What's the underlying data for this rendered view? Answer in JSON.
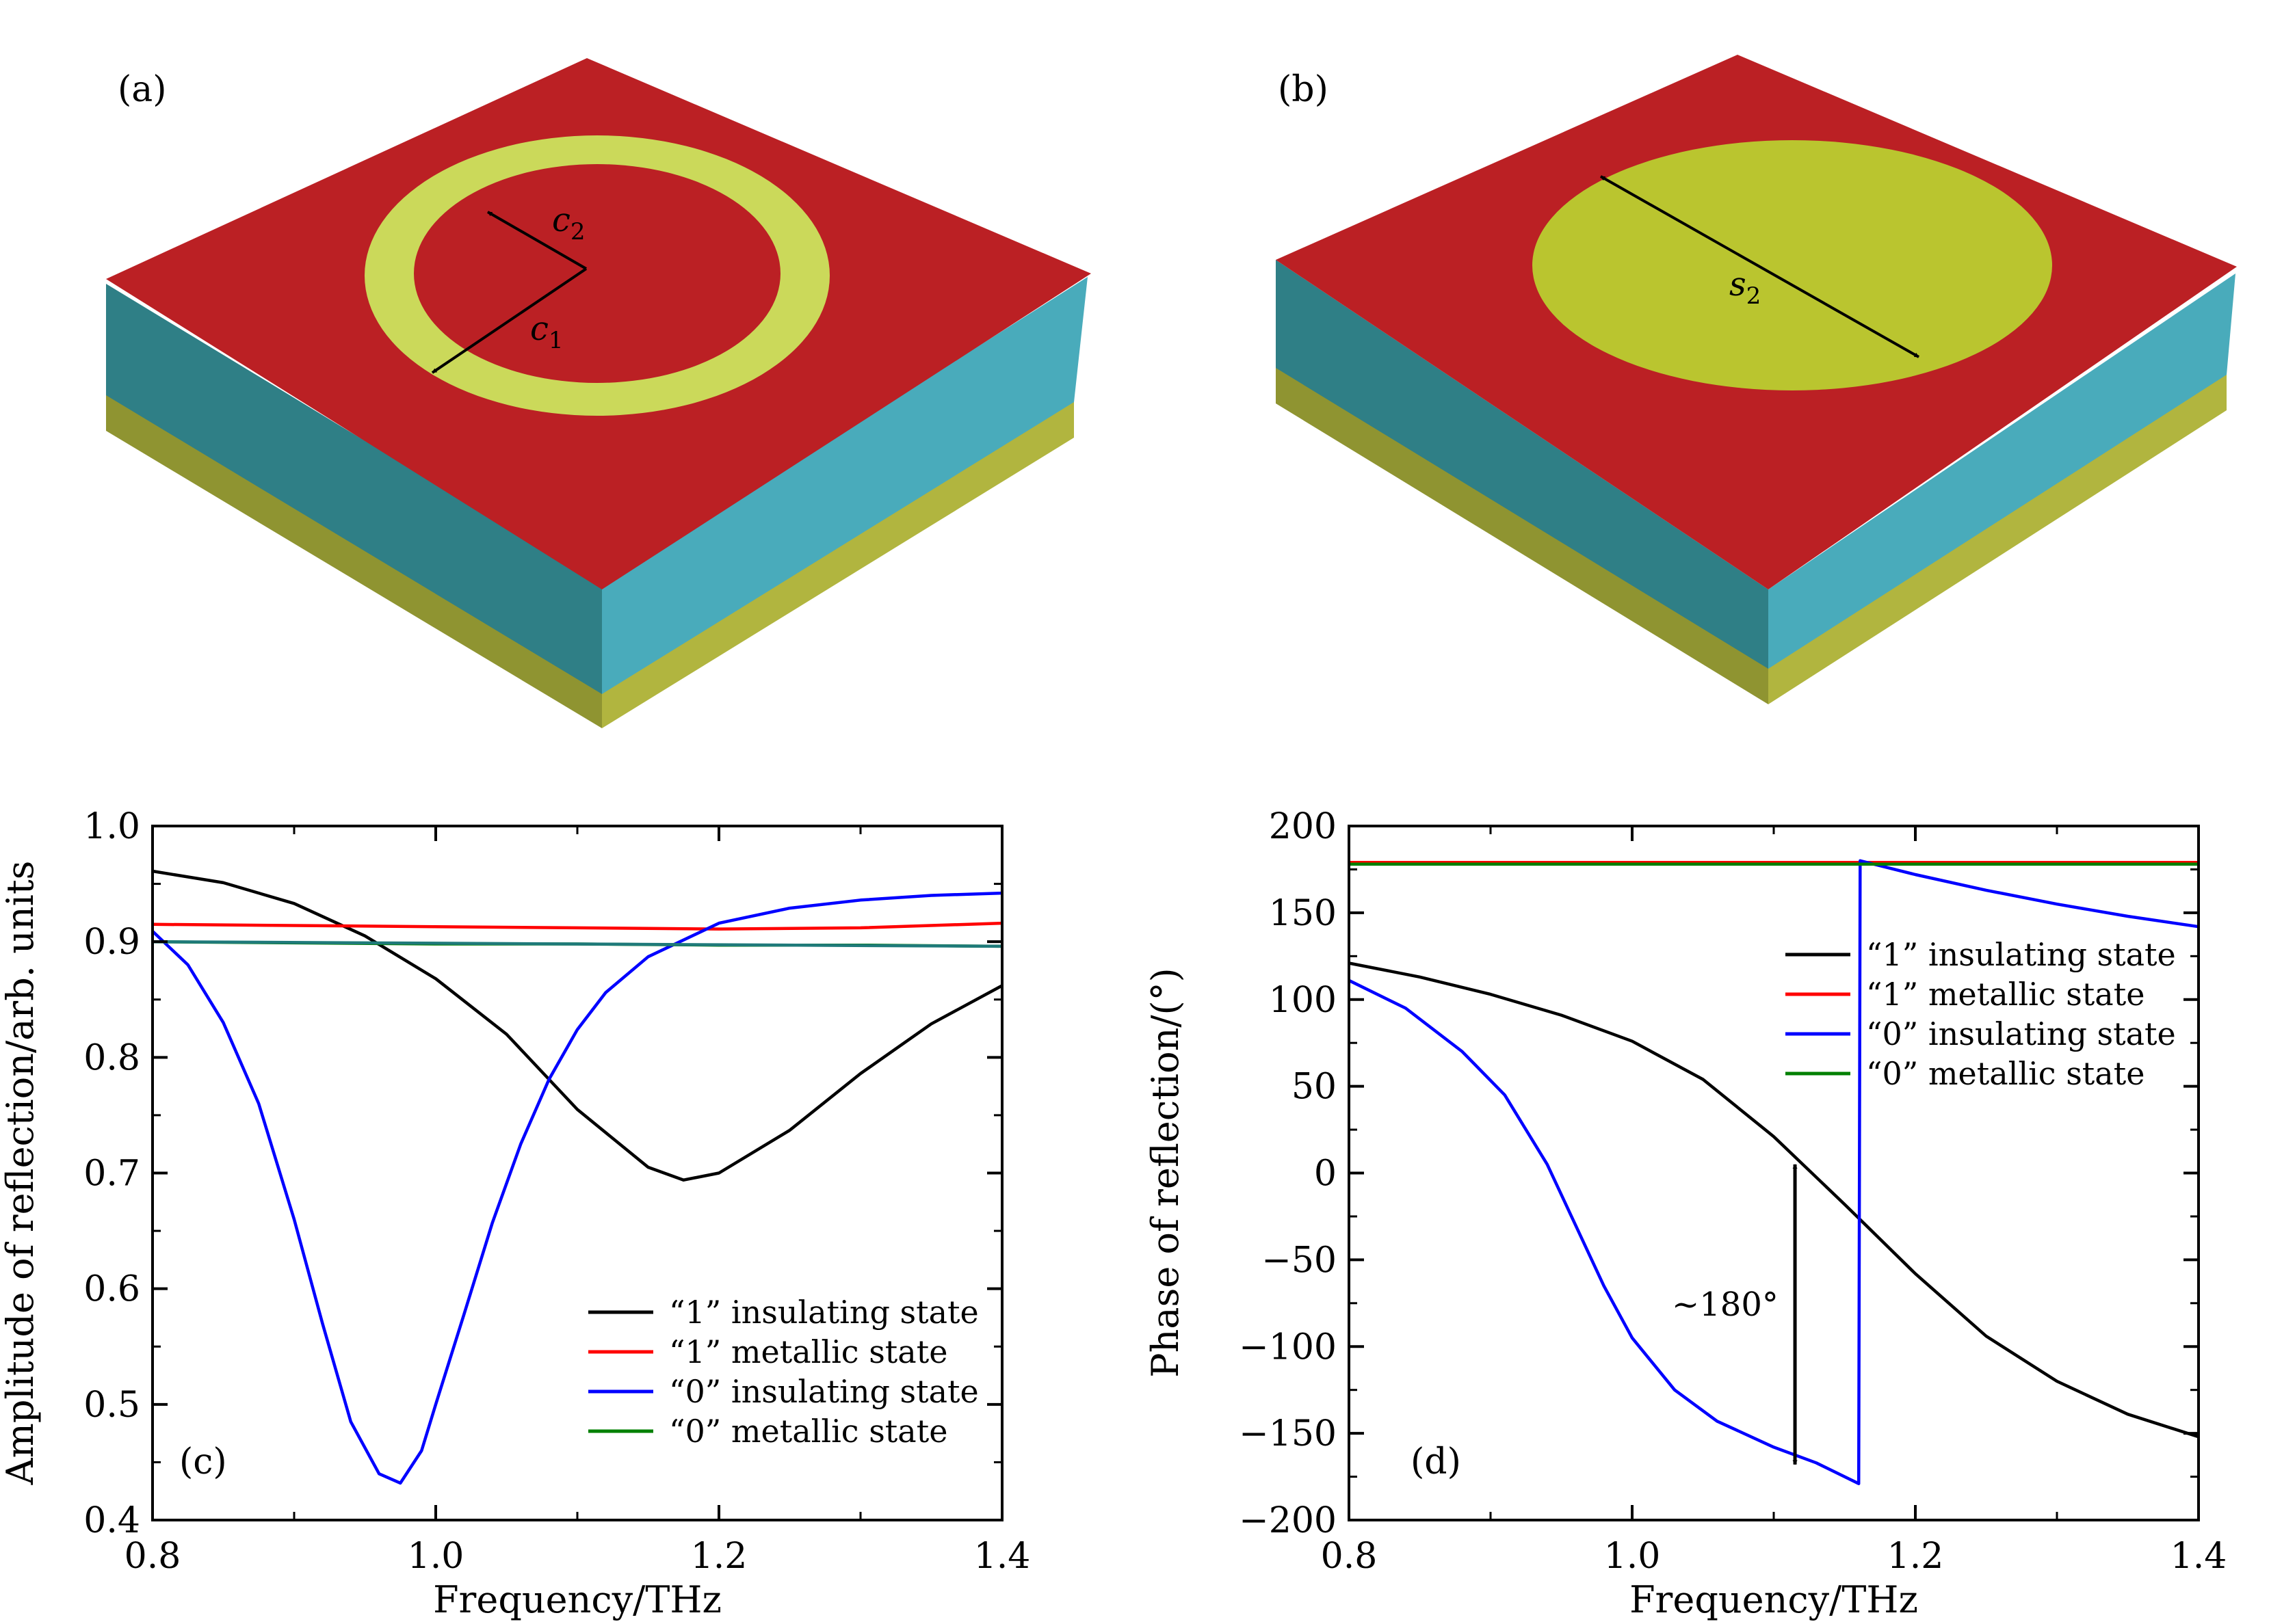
{
  "panels": {
    "a": {
      "label": "(a)",
      "dim1": "c",
      "dim1_sub": "1",
      "dim2": "c",
      "dim2_sub": "2",
      "colors": {
        "top": "#bb2024",
        "ring": "#cbd95a",
        "substrate_dark": "#2f7f86",
        "substrate_light": "#49abbb",
        "ground": "#a6a838"
      }
    },
    "b": {
      "label": "(b)",
      "dim": "s",
      "dim_sub": "2",
      "colors": {
        "top": "#bb2024",
        "disk": "#bac52f",
        "substrate_dark": "#2f7f86",
        "substrate_light": "#49abbb",
        "ground": "#a6a838"
      }
    }
  },
  "chart_data": [
    {
      "id": "c",
      "type": "line",
      "panel_label": "(c)",
      "xlabel": "Frequency/THz",
      "ylabel": "Amplitude of reflection/arb. units",
      "xlim": [
        0.8,
        1.4
      ],
      "ylim": [
        0.4,
        1.0
      ],
      "xticks": [
        0.8,
        1.0,
        1.2,
        1.4
      ],
      "xtick_labels": [
        "0.8",
        "1.0",
        "1.2",
        "1.4"
      ],
      "yticks": [
        0.4,
        0.5,
        0.6,
        0.7,
        0.8,
        0.9,
        1.0
      ],
      "ytick_labels": [
        "0.4",
        "0.5",
        "0.6",
        "0.7",
        "0.8",
        "0.9",
        "1.0"
      ],
      "legend_position": "bottom-right",
      "grid": false,
      "series": [
        {
          "name": "“1” insulating state",
          "color": "#000000",
          "x": [
            0.8,
            0.85,
            0.9,
            0.95,
            1.0,
            1.05,
            1.1,
            1.15,
            1.175,
            1.2,
            1.25,
            1.3,
            1.35,
            1.4
          ],
          "y": [
            0.961,
            0.951,
            0.933,
            0.905,
            0.868,
            0.82,
            0.755,
            0.705,
            0.694,
            0.7,
            0.737,
            0.786,
            0.829,
            0.862
          ]
        },
        {
          "name": "“1” metallic state",
          "color": "#ff0000",
          "x": [
            0.8,
            0.9,
            1.0,
            1.1,
            1.2,
            1.3,
            1.4
          ],
          "y": [
            0.915,
            0.914,
            0.913,
            0.912,
            0.911,
            0.912,
            0.916
          ]
        },
        {
          "name": "“0” insulating state",
          "color": "#0000ff",
          "x": [
            0.8,
            0.825,
            0.85,
            0.875,
            0.9,
            0.92,
            0.94,
            0.96,
            0.975,
            0.99,
            1.0,
            1.02,
            1.04,
            1.06,
            1.08,
            1.1,
            1.12,
            1.15,
            1.2,
            1.25,
            1.3,
            1.35,
            1.4
          ],
          "y": [
            0.909,
            0.88,
            0.83,
            0.76,
            0.66,
            0.57,
            0.485,
            0.44,
            0.432,
            0.46,
            0.5,
            0.578,
            0.657,
            0.725,
            0.781,
            0.824,
            0.856,
            0.887,
            0.916,
            0.929,
            0.936,
            0.94,
            0.942
          ]
        },
        {
          "name": "“0” metallic state",
          "color": "#008000",
          "x": [
            0.8,
            0.9,
            1.0,
            1.1,
            1.2,
            1.3,
            1.4
          ],
          "y": [
            0.9,
            0.899,
            0.898,
            0.898,
            0.897,
            0.897,
            0.896
          ]
        },
        {
          "name": "",
          "color": "#1f7a7a",
          "dashed": false,
          "x": [
            0.8,
            1.4
          ],
          "y": [
            0.9,
            0.896
          ]
        }
      ]
    },
    {
      "id": "d",
      "type": "line",
      "panel_label": "(d)",
      "xlabel": "Frequency/THz",
      "ylabel": "Phase of reflection/(°)",
      "xlim": [
        0.8,
        1.4
      ],
      "ylim": [
        -200,
        200
      ],
      "xticks": [
        0.8,
        1.0,
        1.2,
        1.4
      ],
      "xtick_labels": [
        "0.8",
        "1.0",
        "1.2",
        "1.4"
      ],
      "yticks": [
        -200,
        -150,
        -100,
        -50,
        0,
        50,
        100,
        150,
        200
      ],
      "ytick_labels": [
        "−200",
        "−150",
        "−100",
        "−50",
        "0",
        "50",
        "100",
        "150",
        "200"
      ],
      "legend_position": "top-right",
      "grid": false,
      "annotation": {
        "text": "~180°",
        "x": 1.115,
        "y_top": 5,
        "y_bottom": -168
      },
      "series": [
        {
          "name": "“1” insulating state",
          "color": "#000000",
          "x": [
            0.8,
            0.85,
            0.9,
            0.95,
            1.0,
            1.05,
            1.1,
            1.15,
            1.2,
            1.25,
            1.3,
            1.35,
            1.4
          ],
          "y": [
            121,
            113,
            103,
            91,
            76,
            54,
            21,
            -18,
            -58,
            -94,
            -120,
            -139,
            -152
          ]
        },
        {
          "name": "“1” metallic state",
          "color": "#ff0000",
          "x": [
            0.8,
            1.4
          ],
          "y": [
            179,
            179
          ]
        },
        {
          "name": "“0” insulating state",
          "color": "#0000ff",
          "x": [
            0.8,
            0.84,
            0.88,
            0.91,
            0.94,
            0.96,
            0.98,
            1.0,
            1.03,
            1.06,
            1.1,
            1.13,
            1.16,
            1.161,
            1.2,
            1.25,
            1.3,
            1.35,
            1.4
          ],
          "y": [
            111,
            95,
            70,
            45,
            5,
            -30,
            -65,
            -95,
            -125,
            -143,
            -158,
            -167,
            -179,
            180,
            172,
            163,
            155,
            148,
            142
          ]
        },
        {
          "name": "“0” metallic state",
          "color": "#008000",
          "x": [
            0.8,
            1.4
          ],
          "y": [
            178,
            178
          ]
        }
      ]
    }
  ]
}
